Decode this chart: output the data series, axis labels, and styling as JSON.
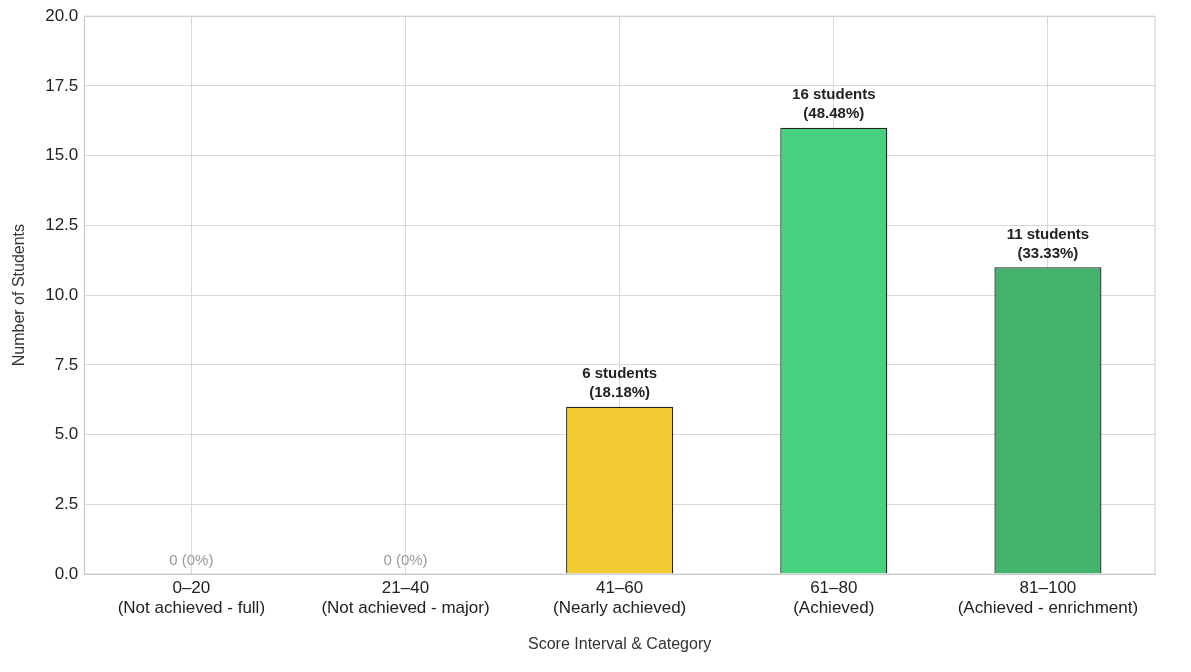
{
  "chart_data": {
    "type": "bar",
    "categories": [
      "0–20\n(Not achieved - full)",
      "21–40\n(Not achieved - major)",
      "41–60\n(Nearly achieved)",
      "61–80\n(Achieved)",
      "81–100\n(Achieved - enrichment)"
    ],
    "values": [
      0,
      0,
      6,
      16,
      11
    ],
    "colors": [
      "#b0b0b0",
      "#b0b0b0",
      "#f1c932",
      "#48d17f",
      "#45b36b"
    ],
    "value_labels": [
      "0 (0%)",
      "0 (0%)",
      "6 students\n(18.18%)",
      "16 students\n(48.48%)",
      "11 students\n(33.33%)"
    ],
    "xlabel": "Score Interval & Category",
    "ylabel": "Number of Students",
    "ylim": [
      0,
      20
    ],
    "yticks": [
      {
        "value": 0,
        "label": "0.0"
      },
      {
        "value": 2.5,
        "label": "2.5"
      },
      {
        "value": 5,
        "label": "5.0"
      },
      {
        "value": 7.5,
        "label": "7.5"
      },
      {
        "value": 10,
        "label": "10.0"
      },
      {
        "value": 12.5,
        "label": "12.5"
      },
      {
        "value": 15,
        "label": "15.0"
      },
      {
        "value": 17.5,
        "label": "17.5"
      },
      {
        "value": 20,
        "label": "20.0"
      }
    ],
    "grid": true,
    "legend": false
  }
}
